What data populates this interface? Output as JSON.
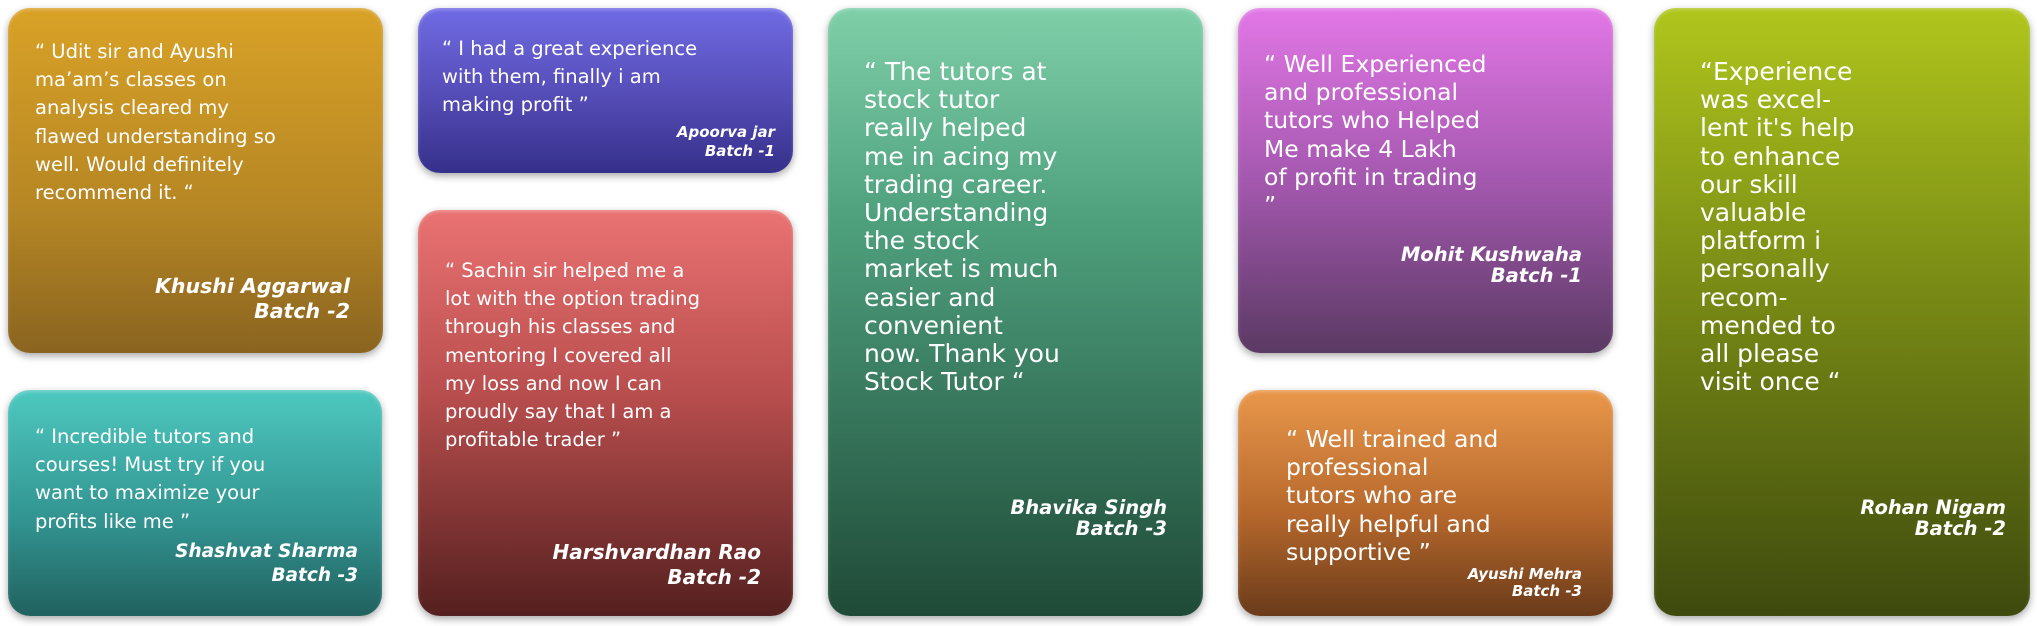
{
  "testimonials": [
    {
      "quote": "“ Udit sir and Ayushi\nma’am’s classes on\nanalysis cleared my\nflawed understanding so\nwell. Would definitely\nrecommend it. “",
      "name": "Khushi Aggarwal",
      "batch": "Batch -2",
      "color": "#c99525"
    },
    {
      "quote": "“ Incredible tutors and\ncourses! Must try if you\nwant to maximize your\nprofits like me ”",
      "name": "Shashvat Sharma",
      "batch": "Batch -3",
      "color": "#3fb2ab"
    },
    {
      "quote": "“ I had a great experience\nwith them, finally i am\nmaking profit ”",
      "name": "Apoorva jar",
      "batch": "Batch -1",
      "color": "#5d55c8"
    },
    {
      "quote": "“ Sachin sir helped me a\nlot with the option trading\nthrough his classes and\nmentoring I covered all\nmy loss and now I can\nproudly say that I am a\nprofitable trader ”",
      "name": "Harshvardhan Rao",
      "batch": "Batch -2",
      "color": "#c95a5a"
    },
    {
      "quote": "“ The tutors at\nstock tutor\nreally helped\nme in acing my\ntrading career.\nUnderstanding\nthe stock\nmarket is much\neasier and\nconvenient\nnow. Thank you\nStock Tutor “",
      "name": "Bhavika Singh",
      "batch": "Batch -3",
      "color": "#5fae8a"
    },
    {
      "quote": "“ Well Experienced\nand professional\ntutors who Helped\nMe make 4 Lakh\nof profit in trading\n”",
      "name": "Mohit Kushwaha",
      "batch": "Batch -1",
      "color": "#b862c2"
    },
    {
      "quote": "“ Well trained and\nprofessional\ntutors who are\nreally helpful and\nsupportive ”",
      "name": "Ayushi Mehra",
      "batch": "Batch -3",
      "color": "#cc7a3a"
    },
    {
      "quote": "“Experience\nwas excel-\nlent it's help\nto enhance\nour skill\nvaluable\nplatform i\npersonally\nrecom-\nmended to\nall please\nvisit once “",
      "name": "Rohan Nigam",
      "batch": "Batch -2",
      "color": "#8fa318"
    }
  ]
}
